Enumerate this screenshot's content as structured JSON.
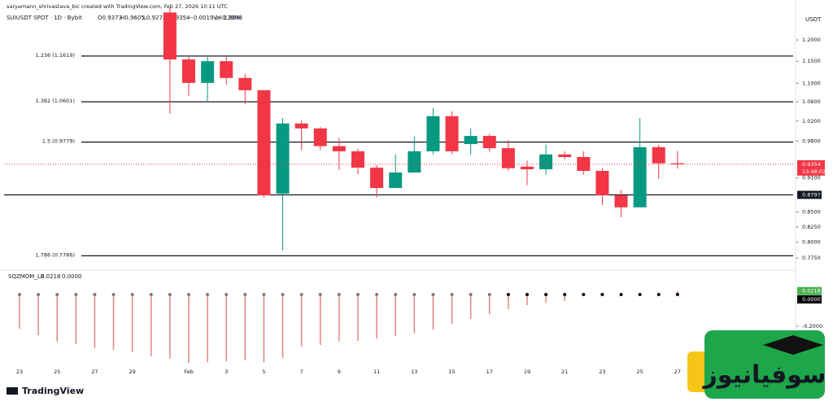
{
  "header": {
    "attribution": "saryamann_shrivastava_bic created with TradingView.com, Feb 27, 2026 10:11 UTC",
    "symbol": "SUIUSDT SPOT · 1D · Bybit",
    "open": "O0.9373",
    "high": "H0.9605",
    "low": "L0.9272",
    "close": "C0.9354",
    "change": "−0.0019 (−0.20%)",
    "volume": "Vol 2.98M"
  },
  "footer": {
    "brand": "TradingView",
    "watermark": "سوفیانیوز"
  },
  "chart_data": [
    {
      "type": "candlestick",
      "axis_unit": "USDT",
      "log_scale": true,
      "categories": [
        "23",
        null,
        "25",
        null,
        "27",
        null,
        "29",
        null,
        null,
        "Feb",
        null,
        "3",
        null,
        "5",
        null,
        "7",
        null,
        "9",
        null,
        "11",
        null,
        "13",
        null,
        "15",
        null,
        "17",
        null,
        "19",
        null,
        "21",
        null,
        "23",
        null,
        "25",
        null,
        "27"
      ],
      "open": [
        null,
        null,
        null,
        null,
        null,
        null,
        null,
        null,
        1.268,
        1.154,
        1.101,
        1.15,
        1.112,
        1.085,
        0.882,
        1.015,
        1.005,
        0.97,
        0.96,
        0.929,
        0.892,
        0.92,
        0.96,
        1.03,
        0.974,
        0.99,
        0.966,
        0.931,
        0.926,
        0.954,
        0.949,
        0.923,
        0.879,
        0.858,
        0.968,
        0.9373
      ],
      "high": [
        null,
        null,
        null,
        null,
        null,
        null,
        null,
        null,
        1.28,
        1.16,
        1.16,
        1.16,
        1.121,
        1.085,
        1.026,
        1.021,
        1.008,
        0.986,
        0.965,
        0.934,
        0.954,
        0.989,
        1.047,
        1.04,
        1.005,
        0.994,
        0.982,
        0.942,
        0.973,
        0.96,
        0.96,
        0.928,
        0.888,
        1.026,
        0.973,
        0.9605
      ],
      "low": [
        null,
        null,
        null,
        null,
        null,
        null,
        null,
        null,
        1.035,
        1.073,
        1.062,
        1.097,
        1.055,
        0.875,
        0.787,
        0.962,
        0.962,
        0.925,
        0.917,
        0.875,
        0.892,
        0.92,
        0.954,
        0.954,
        0.954,
        0.96,
        0.923,
        0.897,
        0.916,
        0.945,
        0.916,
        0.862,
        0.841,
        0.858,
        0.908,
        0.9272
      ],
      "close": [
        null,
        null,
        null,
        null,
        null,
        null,
        null,
        null,
        1.154,
        1.101,
        1.15,
        1.112,
        1.085,
        0.879,
        1.015,
        1.005,
        0.97,
        0.96,
        0.929,
        0.892,
        0.92,
        0.96,
        1.03,
        0.96,
        0.99,
        0.966,
        0.928,
        0.926,
        0.954,
        0.949,
        0.923,
        0.879,
        0.858,
        0.968,
        0.937,
        0.9354
      ],
      "up_color": "#089981",
      "down_color": "#f23645",
      "ylim": [
        0.759,
        1.279
      ],
      "yticks": [
        {
          "value": 1.2,
          "label": "1.2000"
        },
        {
          "value": 1.15,
          "label": "1.1500"
        },
        {
          "value": 1.1,
          "label": "1.1000"
        },
        {
          "value": 1.06,
          "label": "1.0600"
        },
        {
          "value": 1.02,
          "label": "1.0200"
        },
        {
          "value": 0.98,
          "label": "0.9800"
        },
        {
          "value": 0.91,
          "label": "0.9100"
        },
        {
          "value": 0.85,
          "label": "0.8500"
        },
        {
          "value": 0.825,
          "label": "0.8250"
        },
        {
          "value": 0.8,
          "label": "0.8000"
        },
        {
          "value": 0.775,
          "label": "0.7750"
        }
      ],
      "fib_levels": [
        {
          "value": 1.1619,
          "label": "1.236 (1.1619)"
        },
        {
          "value": 1.0601,
          "label": "1.382 (1.0601)"
        },
        {
          "value": 0.9779,
          "label": "1.5 (0.9779)"
        },
        {
          "value": 0.7786,
          "label": "1.786 (0.7786)"
        }
      ],
      "horizontal_line": {
        "value": 0.8797,
        "label": "0.8797"
      },
      "last_price": {
        "value": 0.9354,
        "label": "0.9354",
        "countdown": "13:48:02"
      }
    },
    {
      "type": "momentum",
      "title": "SQZMOM_LB",
      "header_values": [
        "0.0218",
        "0.0000"
      ],
      "values": [
        -0.215,
        -0.256,
        -0.297,
        -0.313,
        -0.338,
        -0.349,
        -0.364,
        -0.39,
        -0.405,
        -0.431,
        -0.426,
        -0.421,
        -0.415,
        -0.426,
        -0.4,
        -0.328,
        -0.318,
        -0.297,
        -0.292,
        -0.277,
        -0.262,
        -0.246,
        -0.221,
        -0.185,
        -0.154,
        -0.123,
        -0.092,
        -0.067,
        -0.051,
        -0.041,
        -0.01,
        -0.005,
        -0.003,
        -0.002,
        -0.001,
        0.0218
      ],
      "color": "#e08585",
      "dot_colors": [
        "#787b86",
        "#787b86",
        "#787b86",
        "#787b86",
        "#787b86",
        "#787b86",
        "#787b86",
        "#787b86",
        "#787b86",
        "#787b86",
        "#787b86",
        "#787b86",
        "#787b86",
        "#787b86",
        "#787b86",
        "#787b86",
        "#787b86",
        "#787b86",
        "#787b86",
        "#787b86",
        "#787b86",
        "#787b86",
        "#787b86",
        "#787b86",
        "#787b86",
        "#787b86",
        "#000000",
        "#000000",
        "#000000",
        "#000000",
        "#000000",
        "#000000",
        "#000000",
        "#000000",
        "#000000",
        "#000000"
      ],
      "ylim": [
        -0.4615,
        0.1128
      ],
      "yticks": [
        {
          "value": -0.2,
          "label": "-0.2000"
        }
      ],
      "last_value": {
        "value": 0.0218,
        "label": "0.0218"
      },
      "zero_label": {
        "value": 0,
        "label": "0.0000"
      }
    }
  ]
}
